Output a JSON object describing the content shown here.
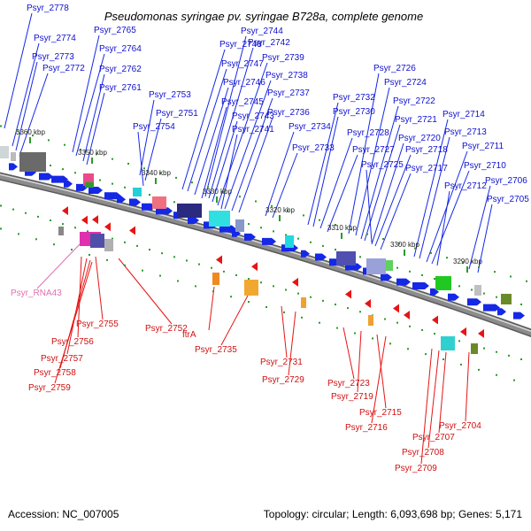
{
  "title": "Pseudomonas syringae pv. syringae B728a, complete genome",
  "footer": {
    "accession": "Accession: NC_007005",
    "topology": "Topology: circular; Length: 6,093,698 bp; Genes: 5,171"
  },
  "colors": {
    "forward": "#1428e6",
    "reverse": "#e61414",
    "backbone": "#8c8c8c",
    "tick": "#2a9a2a",
    "rna": "#e070b0"
  },
  "ticks": [
    "3360 kbp",
    "3350 kbp",
    "3340 kbp",
    "3330 kbp",
    "3320 kbp",
    "3310 kbp",
    "3300 kbp",
    "3290 kbp"
  ],
  "forward_genes": [
    "Psyr_2778",
    "Psyr_2774",
    "Psyr_2773",
    "Psyr_2772",
    "Psyr_2765",
    "Psyr_2764",
    "Psyr_2762",
    "Psyr_2761",
    "Psyr_2753",
    "Psyr_2751",
    "Psyr_2754",
    "Psyr_2748",
    "Psyr_2747",
    "Psyr_2746",
    "Psyr_2745",
    "Psyr_2743",
    "Psyr_2744",
    "Psyr_2742",
    "Psyr_2739",
    "Psyr_2738",
    "Psyr_2737",
    "Psyr_2736",
    "Psyr_2741",
    "Psyr_2734",
    "Psyr_2733",
    "Psyr_2732",
    "Psyr_2730",
    "Psyr_2728",
    "Psyr_2727",
    "Psyr_2726",
    "Psyr_2724",
    "Psyr_2722",
    "Psyr_2721",
    "Psyr_2725",
    "Psyr_2720",
    "Psyr_2718",
    "Psyr_2717",
    "Psyr_2714",
    "Psyr_2713",
    "Psyr_2711",
    "Psyr_2710",
    "Psyr_2712",
    "Psyr_2706",
    "Psyr_2705"
  ],
  "reverse_genes": [
    "Psyr_RNA43",
    "Psyr_2755",
    "Psyr_2752",
    "ftrA",
    "Psyr_2756",
    "Psyr_2757",
    "Psyr_2758",
    "Psyr_2759",
    "Psyr_2735",
    "Psyr_2731",
    "Psyr_2729",
    "Psyr_2723",
    "Psyr_2719",
    "Psyr_2715",
    "Psyr_2716",
    "Psyr_2704",
    "Psyr_2707",
    "Psyr_2708",
    "Psyr_2709"
  ]
}
